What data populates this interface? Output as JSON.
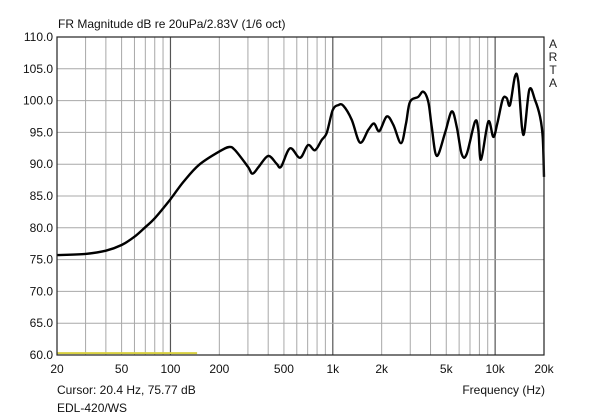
{
  "chart_data": {
    "type": "line",
    "title": "FR Magnitude dB re 20uPa/2.83V (1/6 oct)",
    "xlabel": "Frequency (Hz)",
    "ylabel": "",
    "x_scale": "log",
    "xlim": [
      20,
      20000
    ],
    "ylim": [
      60,
      110
    ],
    "grid": true,
    "x_ticks": [
      {
        "v": 20,
        "label": "20"
      },
      {
        "v": 50,
        "label": "50"
      },
      {
        "v": 100,
        "label": "100"
      },
      {
        "v": 200,
        "label": "200"
      },
      {
        "v": 500,
        "label": "500"
      },
      {
        "v": 1000,
        "label": "1k"
      },
      {
        "v": 2000,
        "label": "2k"
      },
      {
        "v": 5000,
        "label": "5k"
      },
      {
        "v": 10000,
        "label": "10k"
      },
      {
        "v": 20000,
        "label": "20k"
      }
    ],
    "y_ticks": [
      "110.0",
      "105.0",
      "100.0",
      "95.0",
      "90.0",
      "85.0",
      "80.0",
      "75.0",
      "70.0",
      "65.0",
      "60.0"
    ],
    "series": [
      {
        "color": "#000000",
        "x": [
          20,
          30,
          40,
          50,
          60,
          70,
          80,
          100,
          120,
          150,
          200,
          230,
          250,
          300,
          320,
          350,
          400,
          450,
          480,
          545,
          628,
          703,
          777,
          854,
          917,
          999,
          1081,
          1160,
          1307,
          1471,
          1655,
          1794,
          1934,
          2148,
          2358,
          2630,
          2824,
          2989,
          3362,
          3610,
          3876,
          4066,
          4366,
          4910,
          5402,
          5800,
          6224,
          6682,
          7514,
          7874,
          8182,
          9076,
          9742,
          10310,
          11132,
          11784,
          12344,
          13254,
          13888,
          14912,
          16242,
          17606,
          18896,
          19630,
          20000
        ],
        "y": [
          75.7,
          75.9,
          76.4,
          77.3,
          78.6,
          80.1,
          81.5,
          84.5,
          87.2,
          89.9,
          92.0,
          92.7,
          92.2,
          89.6,
          88.5,
          89.6,
          91.3,
          90.1,
          89.6,
          92.5,
          91.0,
          93.0,
          92.2,
          93.8,
          94.9,
          98.5,
          99.3,
          99.2,
          97.0,
          93.4,
          95.4,
          96.4,
          95.2,
          97.5,
          96.2,
          93.3,
          96.4,
          99.8,
          100.6,
          101.4,
          99.8,
          95.9,
          91.3,
          94.9,
          98.3,
          95.9,
          91.6,
          91.6,
          96.7,
          95.4,
          90.7,
          96.7,
          94.3,
          96.4,
          100.2,
          100.4,
          99.3,
          103.8,
          103.0,
          94.6,
          101.7,
          100.1,
          97.5,
          94.3,
          88.0
        ]
      },
      {
        "color": "#d8d040",
        "x": [
          20,
          146
        ],
        "y": [
          60.3,
          60.3
        ]
      }
    ],
    "annotations": {
      "watermark": "ARTA",
      "cursor": "Cursor: 20.4 Hz, 75.77 dB",
      "label": "EDL-420/WS"
    }
  }
}
